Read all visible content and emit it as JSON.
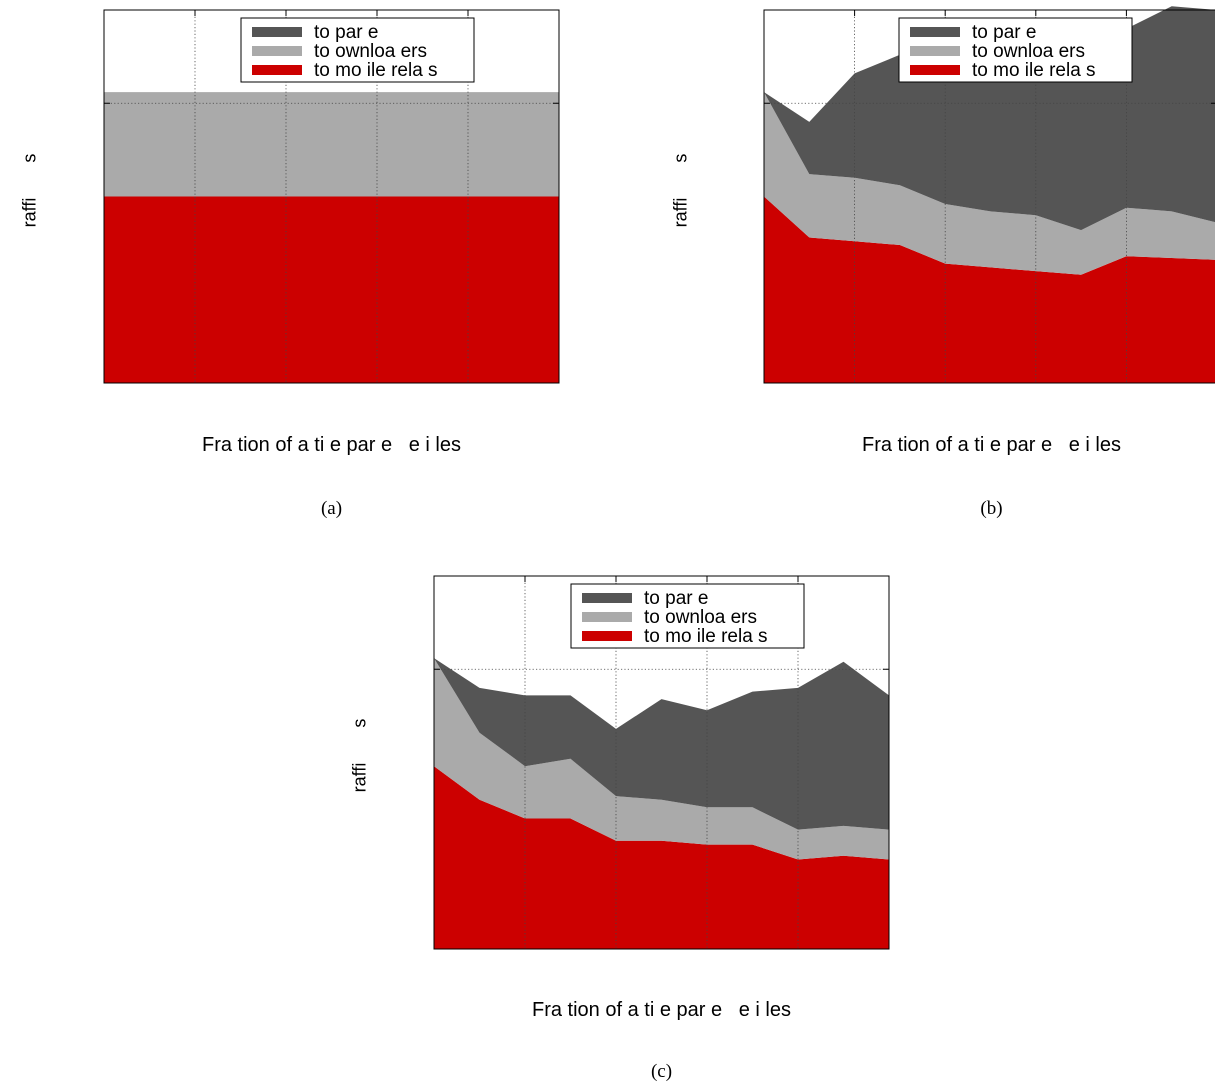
{
  "chart_data": [
    {
      "type": "area",
      "caption": "(a)",
      "xlabel": "Fra tion of a ti e par e   e i les",
      "ylabel": "raffi       s",
      "x": [
        0,
        1,
        2,
        3,
        4,
        5,
        6,
        7,
        8,
        9,
        10
      ],
      "ylim": [
        0,
        1
      ],
      "grid": true,
      "legend_position": "top-right",
      "series": [
        {
          "name": "to mo ile rela s",
          "color": "#cc0000",
          "values": [
            0.5,
            0.5,
            0.5,
            0.5,
            0.5,
            0.5,
            0.5,
            0.5,
            0.5,
            0.5,
            0.5
          ]
        },
        {
          "name": "to  ownloa ers",
          "color": "#aaaaaa",
          "values": [
            0.28,
            0.28,
            0.28,
            0.28,
            0.28,
            0.28,
            0.28,
            0.28,
            0.28,
            0.28,
            0.28
          ]
        },
        {
          "name": "to par e",
          "color": "#555555",
          "values": [
            0,
            0,
            0,
            0,
            0,
            0,
            0,
            0,
            0,
            0,
            0
          ]
        }
      ]
    },
    {
      "type": "area",
      "caption": "(b)",
      "xlabel": "Fra tion of a ti e par e   e i les",
      "ylabel": "raffi       s",
      "x": [
        0,
        1,
        2,
        3,
        4,
        5,
        6,
        7,
        8,
        9,
        10
      ],
      "ylim": [
        0,
        1
      ],
      "grid": true,
      "legend_position": "top-right",
      "series": [
        {
          "name": "to mo ile rela s",
          "color": "#cc0000",
          "values": [
            0.5,
            0.39,
            0.38,
            0.37,
            0.32,
            0.31,
            0.3,
            0.29,
            0.34,
            0.335,
            0.33
          ]
        },
        {
          "name": "to  ownloa ers",
          "color": "#aaaaaa",
          "values": [
            0.28,
            0.17,
            0.17,
            0.16,
            0.16,
            0.15,
            0.15,
            0.12,
            0.13,
            0.125,
            0.1
          ]
        },
        {
          "name": "to par e",
          "color": "#555555",
          "values": [
            0,
            0.14,
            0.28,
            0.35,
            0.4,
            0.44,
            0.48,
            0.54,
            0.48,
            0.55,
            0.57
          ]
        }
      ]
    },
    {
      "type": "area",
      "caption": "(c)",
      "xlabel": "Fra tion of a ti e par e   e i les",
      "ylabel": "raffi       s",
      "x": [
        0,
        1,
        2,
        3,
        4,
        5,
        6,
        7,
        8,
        9,
        10
      ],
      "ylim": [
        0,
        1
      ],
      "grid": true,
      "legend_position": "top-right",
      "series": [
        {
          "name": "to mo ile rela s",
          "color": "#cc0000",
          "values": [
            0.49,
            0.4,
            0.35,
            0.35,
            0.29,
            0.29,
            0.28,
            0.28,
            0.24,
            0.25,
            0.24
          ]
        },
        {
          "name": "to  ownloa ers",
          "color": "#aaaaaa",
          "values": [
            0.29,
            0.18,
            0.14,
            0.16,
            0.12,
            0.11,
            0.1,
            0.1,
            0.08,
            0.08,
            0.08
          ]
        },
        {
          "name": "to par e",
          "color": "#555555",
          "values": [
            0,
            0.12,
            0.19,
            0.17,
            0.18,
            0.27,
            0.26,
            0.31,
            0.38,
            0.44,
            0.36
          ]
        }
      ]
    }
  ]
}
